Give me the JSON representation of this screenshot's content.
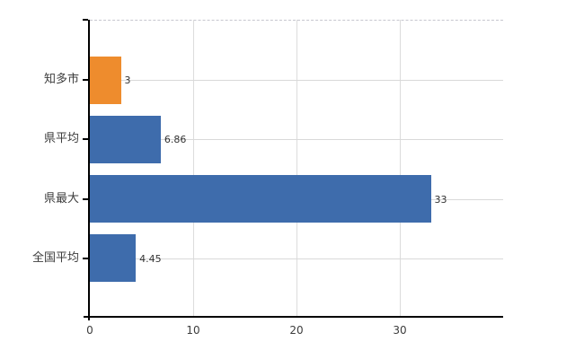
{
  "chart": {
    "background_color": "#ffffff",
    "axis_color": "#000000",
    "grid_color": "#d9d9d9",
    "top_border_color": "#c7c7cf",
    "category_label_color": "#3c3c3c",
    "value_label_color": "#333333"
  },
  "chart_data": {
    "type": "bar",
    "orientation": "horizontal",
    "title": "",
    "xlabel": "",
    "ylabel": "",
    "categories": [
      "知多市",
      "県平均",
      "県最大",
      "全国平均"
    ],
    "values": [
      3,
      6.86,
      33,
      4.45
    ],
    "value_labels": [
      "3",
      "6.86",
      "33",
      "4.45"
    ],
    "bar_colors": [
      "#ee8c2d",
      "#3e6cac",
      "#3e6cac",
      "#3e6cac"
    ],
    "highlight_category": "知多市",
    "x_tick_labels": [
      "0",
      "10",
      "20",
      "30"
    ],
    "x_tick_values": [
      0,
      10,
      20,
      30
    ],
    "xlim": [
      0,
      40
    ],
    "grid": true,
    "legend": false
  }
}
